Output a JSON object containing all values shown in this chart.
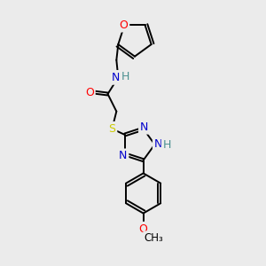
{
  "bg_color": "#ebebeb",
  "atom_colors": {
    "C": "#000000",
    "N": "#0000cc",
    "O": "#ff0000",
    "S": "#cccc00",
    "H": "#4a9090"
  },
  "figsize": [
    3.0,
    3.0
  ],
  "dpi": 100
}
